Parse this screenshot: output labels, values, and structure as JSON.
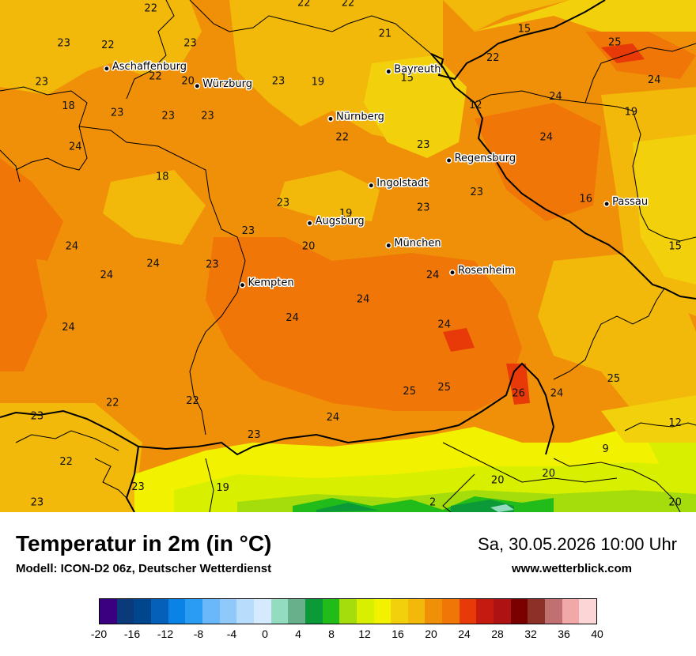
{
  "title": "Temperatur in 2m (in °C)",
  "subtitle": "Modell: ICON-D2 06z, Deutscher Wetterdienst",
  "datetime": "Sa, 30.05.2026 10:00 Uhr",
  "website": "www.wetterblick.com",
  "cities": [
    {
      "name": "Aschaffenburg",
      "lon": 9.15,
      "lat": 49.97
    },
    {
      "name": "Würzburg",
      "lon": 9.93,
      "lat": 49.79
    },
    {
      "name": "Bayreuth",
      "lon": 11.58,
      "lat": 49.94
    },
    {
      "name": "Nürnberg",
      "lon": 11.08,
      "lat": 49.45
    },
    {
      "name": "Regensburg",
      "lon": 12.1,
      "lat": 49.02
    },
    {
      "name": "Ingolstadt",
      "lon": 11.43,
      "lat": 48.76
    },
    {
      "name": "Passau",
      "lon": 13.46,
      "lat": 48.57
    },
    {
      "name": "Augsburg",
      "lon": 10.9,
      "lat": 48.37
    },
    {
      "name": "München",
      "lon": 11.58,
      "lat": 48.14
    },
    {
      "name": "Rosenheim",
      "lon": 12.13,
      "lat": 47.86
    },
    {
      "name": "Kempten",
      "lon": 10.32,
      "lat": 47.73
    }
  ],
  "values": [
    {
      "v": "22",
      "lon": 9.53,
      "lat": 50.56
    },
    {
      "v": "22",
      "lon": 10.85,
      "lat": 50.62
    },
    {
      "v": "22",
      "lon": 11.23,
      "lat": 50.62
    },
    {
      "v": "23",
      "lon": 8.78,
      "lat": 50.2
    },
    {
      "v": "22",
      "lon": 9.16,
      "lat": 50.18
    },
    {
      "v": "23",
      "lon": 9.87,
      "lat": 50.2
    },
    {
      "v": "21",
      "lon": 11.55,
      "lat": 50.3
    },
    {
      "v": "15",
      "lon": 12.75,
      "lat": 50.35
    },
    {
      "v": "25",
      "lon": 13.53,
      "lat": 50.21
    },
    {
      "v": "22",
      "lon": 12.48,
      "lat": 50.05
    },
    {
      "v": "15",
      "lon": 11.74,
      "lat": 49.84
    },
    {
      "v": "23",
      "lon": 8.59,
      "lat": 49.8
    },
    {
      "v": "22",
      "lon": 9.57,
      "lat": 49.86
    },
    {
      "v": "20",
      "lon": 9.85,
      "lat": 49.81
    },
    {
      "v": "23",
      "lon": 10.63,
      "lat": 49.81
    },
    {
      "v": "19",
      "lon": 10.97,
      "lat": 49.8
    },
    {
      "v": "24",
      "lon": 13.87,
      "lat": 49.82
    },
    {
      "v": "24",
      "lon": 13.02,
      "lat": 49.65
    },
    {
      "v": "18",
      "lon": 8.82,
      "lat": 49.55
    },
    {
      "v": "12",
      "lon": 12.33,
      "lat": 49.56
    },
    {
      "v": "23",
      "lon": 9.24,
      "lat": 49.48
    },
    {
      "v": "23",
      "lon": 9.68,
      "lat": 49.45
    },
    {
      "v": "23",
      "lon": 10.02,
      "lat": 49.45
    },
    {
      "v": "19",
      "lon": 13.67,
      "lat": 49.49
    },
    {
      "v": "22",
      "lon": 11.18,
      "lat": 49.23
    },
    {
      "v": "24",
      "lon": 12.94,
      "lat": 49.23
    },
    {
      "v": "23",
      "lon": 11.88,
      "lat": 49.15
    },
    {
      "v": "24",
      "lon": 8.88,
      "lat": 49.13
    },
    {
      "v": "18",
      "lon": 9.63,
      "lat": 48.82
    },
    {
      "v": "23",
      "lon": 12.34,
      "lat": 48.66
    },
    {
      "v": "16",
      "lon": 13.28,
      "lat": 48.59
    },
    {
      "v": "23",
      "lon": 10.67,
      "lat": 48.55
    },
    {
      "v": "23",
      "lon": 11.88,
      "lat": 48.5
    },
    {
      "v": "19",
      "lon": 11.21,
      "lat": 48.44
    },
    {
      "v": "23",
      "lon": 10.37,
      "lat": 48.26
    },
    {
      "v": "15",
      "lon": 14.05,
      "lat": 48.1
    },
    {
      "v": "24",
      "lon": 8.85,
      "lat": 48.1
    },
    {
      "v": "20",
      "lon": 10.89,
      "lat": 48.1
    },
    {
      "v": "24",
      "lon": 9.55,
      "lat": 47.92
    },
    {
      "v": "23",
      "lon": 10.06,
      "lat": 47.91
    },
    {
      "v": "24",
      "lon": 9.15,
      "lat": 47.8
    },
    {
      "v": "24",
      "lon": 11.96,
      "lat": 47.8
    },
    {
      "v": "24",
      "lon": 11.36,
      "lat": 47.55
    },
    {
      "v": "24",
      "lon": 10.75,
      "lat": 47.36
    },
    {
      "v": "24",
      "lon": 12.06,
      "lat": 47.29
    },
    {
      "v": "24",
      "lon": 8.82,
      "lat": 47.26
    },
    {
      "v": "25",
      "lon": 12.06,
      "lat": 46.64
    },
    {
      "v": "25",
      "lon": 11.76,
      "lat": 46.6
    },
    {
      "v": "26",
      "lon": 12.7,
      "lat": 46.58
    },
    {
      "v": "24",
      "lon": 13.03,
      "lat": 46.58
    },
    {
      "v": "25",
      "lon": 13.52,
      "lat": 46.73
    },
    {
      "v": "22",
      "lon": 9.2,
      "lat": 46.48
    },
    {
      "v": "22",
      "lon": 9.89,
      "lat": 46.5
    },
    {
      "v": "23",
      "lon": 8.55,
      "lat": 46.34
    },
    {
      "v": "24",
      "lon": 11.1,
      "lat": 46.33
    },
    {
      "v": "12",
      "lon": 14.05,
      "lat": 46.27
    },
    {
      "v": "23",
      "lon": 10.42,
      "lat": 46.15
    },
    {
      "v": "9",
      "lon": 13.45,
      "lat": 46.0
    },
    {
      "v": "22",
      "lon": 8.8,
      "lat": 45.87
    },
    {
      "v": "20",
      "lon": 12.52,
      "lat": 45.68
    },
    {
      "v": "20",
      "lon": 12.96,
      "lat": 45.75
    },
    {
      "v": "23",
      "lon": 9.42,
      "lat": 45.61
    },
    {
      "v": "19",
      "lon": 10.15,
      "lat": 45.6
    },
    {
      "v": "2",
      "lon": 11.96,
      "lat": 45.45
    },
    {
      "v": "20",
      "lon": 14.05,
      "lat": 45.45
    },
    {
      "v": "23",
      "lon": 8.55,
      "lat": 45.45
    }
  ],
  "legend": {
    "colors": [
      "#3b0080",
      "#0a3a7a",
      "#00468c",
      "#0460b8",
      "#0a82e6",
      "#2a9cf4",
      "#6ab8fa",
      "#90c8fa",
      "#b8dcfc",
      "#d6eafe",
      "#94dcc0",
      "#68b08c",
      "#0c9a38",
      "#22bc1a",
      "#a4dc0c",
      "#d8f000",
      "#f2f200",
      "#f2d00c",
      "#f2b80a",
      "#f09008",
      "#f07608",
      "#e83a08",
      "#c41a10",
      "#ae1212",
      "#7a0000",
      "#8c3028",
      "#c07070",
      "#f0a8a8",
      "#fcd6d6"
    ],
    "ticks": [
      "-20",
      "-16",
      "-12",
      "-8",
      "-4",
      "0",
      "4",
      "8",
      "12",
      "16",
      "20",
      "24",
      "28",
      "32",
      "36",
      "40"
    ]
  }
}
